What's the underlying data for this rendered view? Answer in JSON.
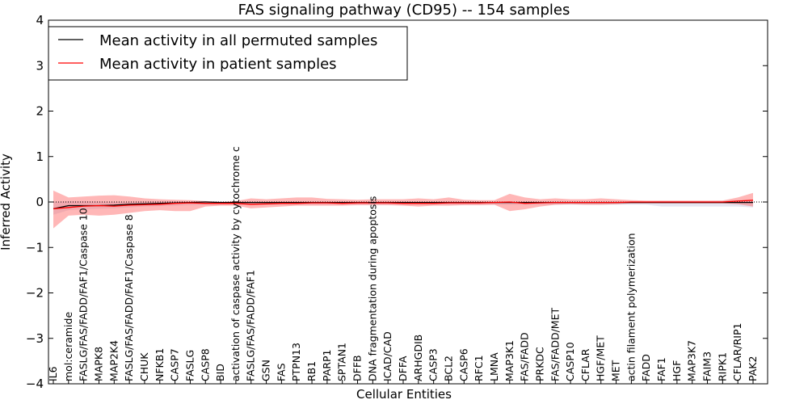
{
  "chart_data": {
    "type": "line",
    "title": "FAS signaling pathway (CD95) -- 154 samples",
    "xlabel": "Cellular Entities",
    "ylabel": "Inferred Activity",
    "ylim": [
      -4,
      4
    ],
    "yticks": [
      4,
      3,
      2,
      1,
      0,
      -1,
      -2,
      -3,
      -4
    ],
    "ytick_labels": [
      "4",
      "3",
      "2",
      "1",
      "0",
      "−1",
      "−2",
      "−3",
      "−4"
    ],
    "grid": false,
    "legend_position": "top-left",
    "categories": [
      "IL6",
      "mol:ceramide",
      "FASLG/FAS/FADD/FAF1/Caspase 10",
      "MAPK8",
      "MAP2K4",
      "FASLG/FAS/FADD/FAF1/Caspase 8",
      "CHUK",
      "NFKB1",
      "CASP7",
      "FASLG",
      "CASP8",
      "BID",
      "activation of caspase activity by cytochrome c",
      "FASLG/FAS/FADD/FAF1",
      "GSN",
      "FAS",
      "PTPN13",
      "RB1",
      "PARP1",
      "SPTAN1",
      "DFFB",
      "DNA fragmentation during apoptosis",
      "ICAD/CAD",
      "DFFA",
      "ARHGDIB",
      "CASP3",
      "BCL2",
      "CASP6",
      "RFC1",
      "LMNA",
      "MAP3K1",
      "FAS/FADD",
      "PRKDC",
      "FAS/FADD/MET",
      "CASP10",
      "CFLAR",
      "HGF/MET",
      "MET",
      "actin filament polymerization",
      "FADD",
      "FAF1",
      "HGF",
      "MAP3K7",
      "FAIM3",
      "RIPK1",
      "CFLAR/RIP1",
      "PAK2"
    ],
    "series": [
      {
        "name": "Mean activity in all permuted samples",
        "color": "#000000",
        "values": [
          -0.15,
          -0.08,
          -0.08,
          -0.08,
          -0.07,
          -0.05,
          -0.04,
          -0.03,
          -0.02,
          -0.01,
          0.0,
          -0.01,
          -0.01,
          -0.01,
          -0.01,
          -0.01,
          -0.01,
          -0.01,
          -0.01,
          -0.01,
          -0.01,
          -0.01,
          -0.01,
          -0.01,
          -0.01,
          -0.01,
          -0.01,
          -0.01,
          -0.01,
          -0.01,
          -0.01,
          -0.01,
          -0.01,
          -0.01,
          -0.01,
          -0.01,
          -0.01,
          -0.01,
          -0.01,
          -0.01,
          -0.01,
          -0.01,
          -0.01,
          -0.01,
          -0.01,
          -0.01,
          -0.01
        ],
        "band_lower": [
          -0.28,
          -0.18,
          -0.16,
          -0.15,
          -0.14,
          -0.12,
          -0.1,
          -0.09,
          -0.08,
          -0.07,
          -0.06,
          -0.06,
          -0.06,
          -0.06,
          -0.06,
          -0.06,
          -0.06,
          -0.06,
          -0.06,
          -0.06,
          -0.06,
          -0.06,
          -0.06,
          -0.06,
          -0.06,
          -0.06,
          -0.06,
          -0.06,
          -0.06,
          -0.06,
          -0.06,
          -0.06,
          -0.06,
          -0.06,
          -0.06,
          -0.06,
          -0.06,
          -0.06,
          -0.06,
          -0.06,
          -0.1,
          -0.1,
          -0.1,
          -0.1,
          -0.1,
          -0.1,
          -0.12
        ],
        "band_upper": [
          0.0,
          0.02,
          0.02,
          0.01,
          0.0,
          0.0,
          0.01,
          0.01,
          0.02,
          0.02,
          0.02,
          0.01,
          0.01,
          0.01,
          0.01,
          0.01,
          0.01,
          0.01,
          0.01,
          0.01,
          0.01,
          0.01,
          0.01,
          0.01,
          0.01,
          0.01,
          0.01,
          0.01,
          0.01,
          0.01,
          0.01,
          0.01,
          0.01,
          0.01,
          0.01,
          0.01,
          0.01,
          0.01,
          0.01,
          0.01,
          0.02,
          0.02,
          0.02,
          0.02,
          0.03,
          0.04,
          0.05
        ]
      },
      {
        "name": "Mean activity in patient samples",
        "color": "#ff0000",
        "values": [
          -0.15,
          -0.12,
          -0.09,
          -0.08,
          -0.09,
          -0.07,
          -0.06,
          -0.05,
          -0.03,
          -0.02,
          -0.03,
          -0.03,
          -0.03,
          -0.05,
          -0.04,
          -0.03,
          -0.03,
          -0.02,
          -0.02,
          -0.03,
          -0.02,
          -0.02,
          -0.02,
          -0.03,
          -0.03,
          -0.03,
          -0.02,
          -0.02,
          -0.02,
          -0.01,
          0.0,
          -0.03,
          -0.02,
          -0.01,
          -0.01,
          -0.01,
          -0.01,
          -0.01,
          0.0,
          0.0,
          0.0,
          0.0,
          0.0,
          0.0,
          0.0,
          0.02,
          0.04
        ],
        "band_lower": [
          -0.58,
          -0.3,
          -0.28,
          -0.3,
          -0.28,
          -0.24,
          -0.2,
          -0.18,
          -0.2,
          -0.2,
          -0.1,
          -0.08,
          -0.08,
          -0.14,
          -0.12,
          -0.1,
          -0.08,
          -0.08,
          -0.08,
          -0.08,
          -0.07,
          -0.07,
          -0.07,
          -0.08,
          -0.1,
          -0.08,
          -0.08,
          -0.07,
          -0.07,
          -0.06,
          -0.2,
          -0.16,
          -0.1,
          -0.06,
          -0.05,
          -0.06,
          -0.06,
          -0.05,
          -0.03,
          -0.03,
          -0.03,
          -0.03,
          -0.03,
          -0.03,
          -0.03,
          -0.05,
          -0.1
        ],
        "band_upper": [
          0.25,
          0.1,
          0.12,
          0.14,
          0.15,
          0.12,
          0.08,
          0.06,
          0.05,
          0.04,
          0.02,
          0.0,
          0.02,
          0.08,
          0.06,
          0.08,
          0.1,
          0.1,
          0.07,
          0.06,
          0.05,
          0.06,
          0.06,
          0.06,
          0.08,
          0.06,
          0.1,
          0.05,
          0.04,
          0.04,
          0.18,
          0.1,
          0.06,
          0.08,
          0.06,
          0.06,
          0.08,
          0.06,
          0.04,
          0.03,
          0.03,
          0.03,
          0.03,
          0.03,
          0.03,
          0.1,
          0.2
        ]
      }
    ],
    "reference_line": 0
  }
}
